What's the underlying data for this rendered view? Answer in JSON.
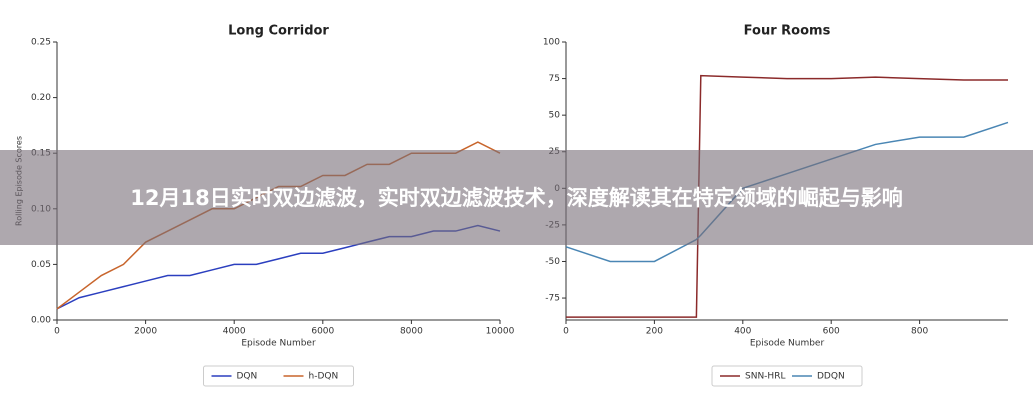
{
  "banner": {
    "title": "12月18日实时双边滤波，实时双边滤波技术，深度解读其在特定领域的崛起与影响"
  },
  "chart_data": [
    {
      "type": "line",
      "title": "Long Corridor",
      "x_label": "Episode Number",
      "y_label": "Rolling Episode Scores",
      "x": [
        0,
        500,
        1000,
        1500,
        2000,
        2500,
        3000,
        3500,
        4000,
        4500,
        5000,
        5500,
        6000,
        6500,
        7000,
        7500,
        8000,
        8500,
        9000,
        9500,
        10000
      ],
      "series": [
        {
          "name": "DQN",
          "color": "#2b3fbf",
          "values": [
            0.01,
            0.02,
            0.025,
            0.03,
            0.035,
            0.04,
            0.04,
            0.045,
            0.05,
            0.05,
            0.055,
            0.06,
            0.06,
            0.065,
            0.07,
            0.075,
            0.075,
            0.08,
            0.08,
            0.085,
            0.08
          ]
        },
        {
          "name": "h-DQN",
          "color": "#c8652c",
          "values": [
            0.01,
            0.025,
            0.04,
            0.05,
            0.07,
            0.08,
            0.09,
            0.1,
            0.1,
            0.11,
            0.12,
            0.12,
            0.13,
            0.13,
            0.14,
            0.14,
            0.15,
            0.15,
            0.15,
            0.16,
            0.15
          ]
        }
      ],
      "xlim": [
        0,
        10000
      ],
      "xticks": [
        0,
        2000,
        4000,
        6000,
        8000,
        10000
      ],
      "ylim": [
        0,
        0.25
      ],
      "yticks": [
        {
          "value": 0,
          "label": "0.00"
        },
        0.05,
        {
          "value": 0.1,
          "label": "0.10"
        },
        0.15,
        {
          "value": 0.2,
          "label": "0.20"
        },
        0.25
      ],
      "legend": "bottom"
    },
    {
      "type": "line",
      "title": "Four Rooms",
      "x_label": "Episode Number",
      "x": [
        0,
        100,
        200,
        295,
        305,
        400,
        500,
        600,
        700,
        800,
        900,
        1000
      ],
      "series": [
        {
          "name": "SNN-HRL",
          "color": "#8b2a2a",
          "values": [
            -88,
            -88,
            -88,
            -88,
            77,
            76,
            75,
            75,
            76,
            75,
            74,
            74
          ]
        },
        {
          "name": "DDQN",
          "color": "#4a86b4",
          "values": [
            -40,
            -50,
            -50,
            -35,
            -32,
            0,
            10,
            20,
            30,
            35,
            35,
            45
          ]
        }
      ],
      "xlim": [
        0,
        1000
      ],
      "xticks": [
        0,
        200,
        400,
        600,
        800
      ],
      "ylim": [
        -90,
        100
      ],
      "yticks": [
        -75,
        -50,
        -25,
        0,
        25,
        50,
        75,
        100
      ],
      "legend": "bottom"
    }
  ]
}
